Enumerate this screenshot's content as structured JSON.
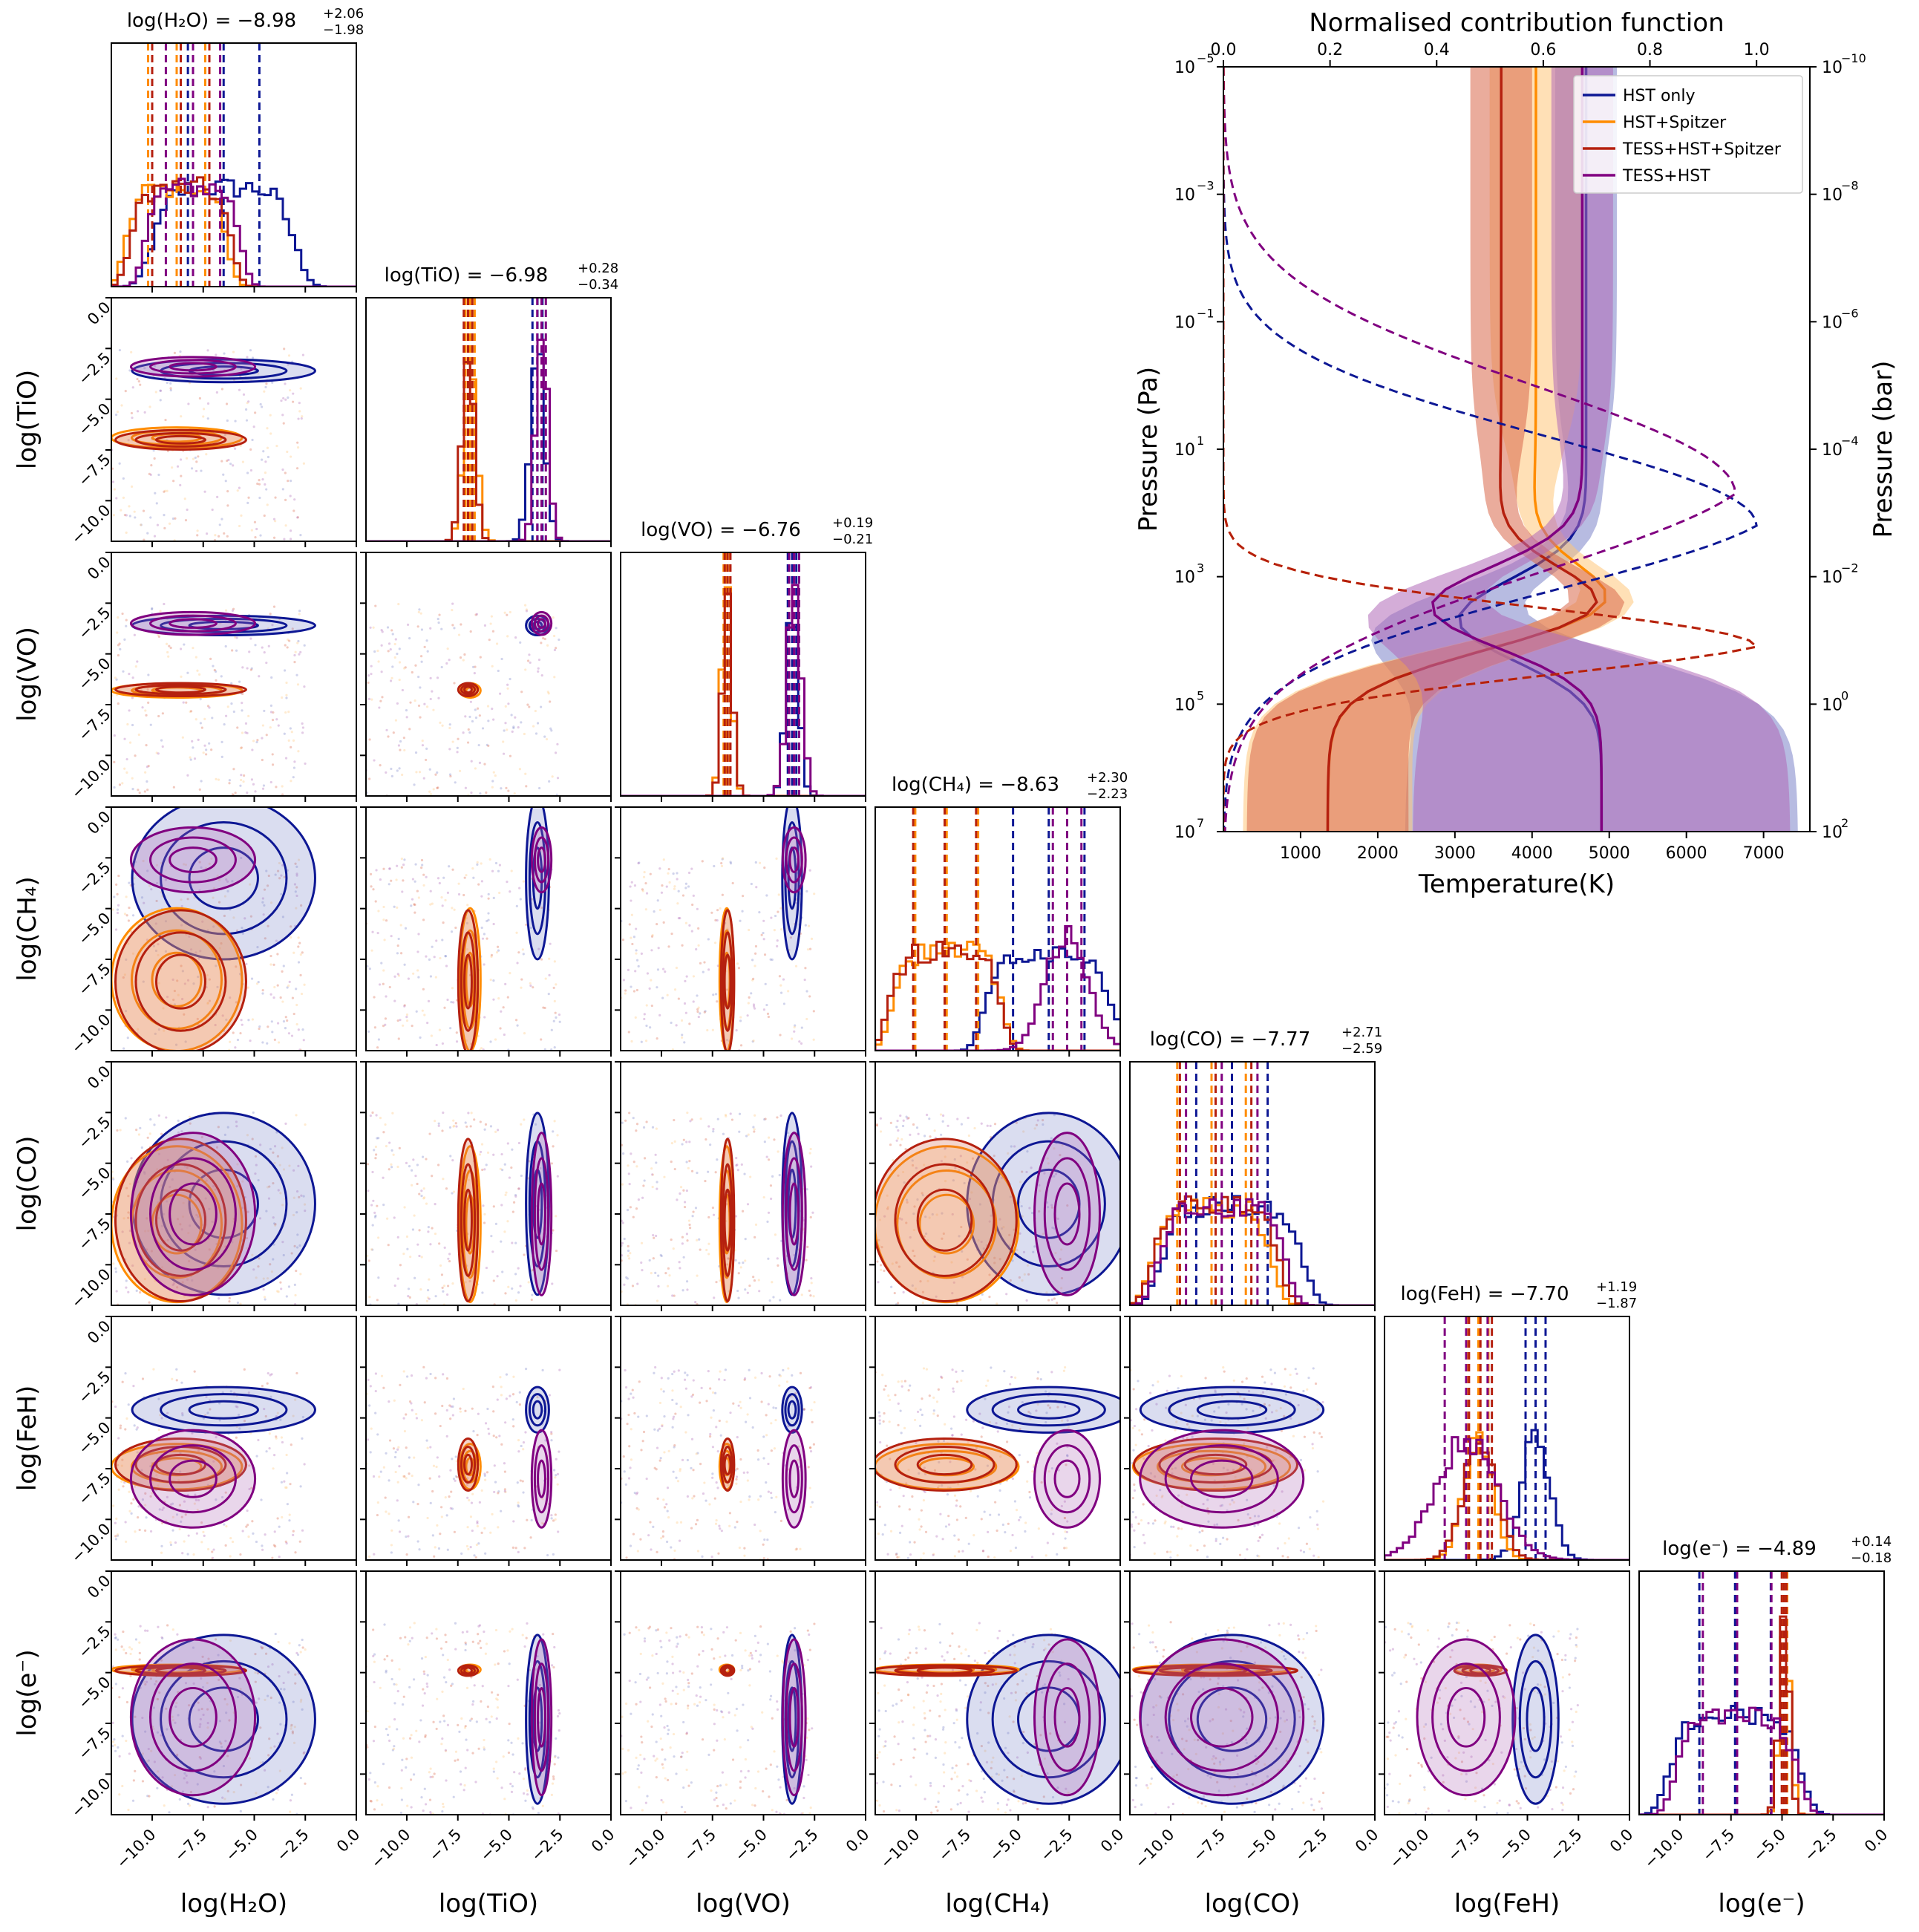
{
  "chart_data": {
    "type": "corner",
    "ticks": {
      "param_tick_values": [
        -10.0,
        -7.5,
        -5.0,
        -2.5,
        0.0
      ],
      "param_tick_labels": [
        "−10.0",
        "−7.5",
        "−5.0",
        "−2.5",
        "0.0"
      ],
      "row_tick_labels": [
        "−10.0",
        "−7.5",
        "−5.0",
        "−2.5",
        "0.0"
      ],
      "param_range": [
        -12,
        0
      ]
    },
    "parameters": [
      {
        "key": "H2O",
        "axis_label": "log(H₂O)",
        "title": "log(H₂O) = −8.98",
        "sup": "+2.06",
        "sub": "−1.98",
        "median": -8.98
      },
      {
        "key": "TiO",
        "axis_label": "log(TiO)",
        "title": "log(TiO) = −6.98",
        "sup": "+0.28",
        "sub": "−0.34",
        "median": -6.98
      },
      {
        "key": "VO",
        "axis_label": "log(VO)",
        "title": "log(VO) = −6.76",
        "sup": "+0.19",
        "sub": "−0.21",
        "median": -6.76
      },
      {
        "key": "CH4",
        "axis_label": "log(CH₄)",
        "title": "log(CH₄) = −8.63",
        "sup": "+2.30",
        "sub": "−2.23",
        "median": -8.63
      },
      {
        "key": "CO",
        "axis_label": "log(CO)",
        "title": "log(CO) = −7.77",
        "sup": "+2.71",
        "sub": "−2.59",
        "median": -7.77
      },
      {
        "key": "FeH",
        "axis_label": "log(FeH)",
        "title": "log(FeH) = −7.70",
        "sup": "+1.19",
        "sub": "−1.87",
        "median": -7.7
      },
      {
        "key": "e",
        "axis_label": "log(e⁻)",
        "title": "log(e⁻) = −4.89",
        "sup": "+0.14",
        "sub": "−0.18",
        "median": -4.89
      }
    ],
    "series": [
      {
        "name": "HST only",
        "color": "#0d1794",
        "fill": "#7b84c8",
        "centers": [
          -6.5,
          -3.6,
          -3.6,
          -3.5,
          -7.0,
          -4.6,
          -7.3
        ],
        "widths": [
          2.8,
          0.35,
          0.3,
          2.5,
          2.8,
          0.7,
          2.6
        ]
      },
      {
        "name": "HST+Spitzer",
        "color": "#ff8c00",
        "fill": "#ffc77a",
        "centers": [
          -8.8,
          -6.9,
          -6.8,
          -8.5,
          -8.0,
          -7.4,
          -4.85
        ],
        "widths": [
          2.0,
          0.32,
          0.22,
          2.2,
          2.4,
          0.7,
          0.15
        ]
      },
      {
        "name": "TESS+HST+Spitzer",
        "color": "#b5200f",
        "fill": "#d9674a",
        "centers": [
          -8.6,
          -7.0,
          -6.76,
          -8.6,
          -7.8,
          -7.3,
          -4.9
        ],
        "widths": [
          2.0,
          0.3,
          0.2,
          2.2,
          2.5,
          0.8,
          0.16
        ]
      },
      {
        "name": "TESS+HST",
        "color": "#800080",
        "fill": "#b06ab8",
        "centers": [
          -8.0,
          -3.4,
          -3.5,
          -2.6,
          -7.5,
          -8.0,
          -7.2
        ],
        "widths": [
          1.9,
          0.3,
          0.35,
          1.0,
          2.5,
          1.5,
          2.4
        ]
      }
    ],
    "inset": {
      "type": "line",
      "title": "Normalised contribution function",
      "xlabel": "Temperature(K)",
      "ylabel_left": "Pressure (Pa)",
      "ylabel_right": "Pressure (bar)",
      "xlim": [
        0,
        7600
      ],
      "ylim_pa": [
        100000000000,
        1e-05
      ],
      "x_ticks": [
        1000,
        2000,
        3000,
        4000,
        5000,
        6000,
        7000
      ],
      "x_tick_labels": [
        "1000",
        "2000",
        "3000",
        "4000",
        "5000",
        "6000",
        "7000"
      ],
      "top_ticks_fraction": [
        0.0,
        0.2,
        0.4,
        0.6,
        0.8,
        1.0
      ],
      "top_tick_labels": [
        "0.0",
        "0.2",
        "0.4",
        "0.6",
        "0.8",
        "1.0"
      ],
      "top_xlim": [
        0,
        1.1
      ],
      "y_left_base": "10",
      "y_left_exps": [
        "−5",
        "−3",
        "−1",
        "1",
        "3",
        "5",
        "7"
      ],
      "y_right_exps": [
        "−10",
        "−8",
        "−6",
        "−4",
        "−2",
        "0",
        "2"
      ],
      "y_right_labels": [
        "10",
        "10",
        "10",
        "10",
        "10",
        "10",
        "10"
      ],
      "pt_profiles": [
        {
          "name": "HST only",
          "color": "#0d1794",
          "fill": "#7b84c8",
          "upper_T": 4700,
          "deep_T": 4900,
          "min_T": 3050,
          "min_logP": 3.7,
          "spread_deep": 2400
        },
        {
          "name": "HST+Spitzer",
          "color": "#ff8c00",
          "fill": "#ffc77a",
          "upper_T": 4050,
          "deep_T": 1350,
          "min_T": 4750,
          "min_logP": 3.6,
          "spread_deep": 950
        },
        {
          "name": "TESS+HST+Spitzer",
          "color": "#b5200f",
          "fill": "#d9674a",
          "upper_T": 3600,
          "deep_T": 1350,
          "min_T": 4700,
          "min_logP": 3.6,
          "spread_deep": 900
        },
        {
          "name": "TESS+HST",
          "color": "#800080",
          "fill": "#b06ab8",
          "upper_T": 4650,
          "deep_T": 4900,
          "min_T": 2700,
          "min_logP": 3.5,
          "spread_deep": 2300
        }
      ]
    },
    "legend": {
      "position": "top-right"
    }
  }
}
